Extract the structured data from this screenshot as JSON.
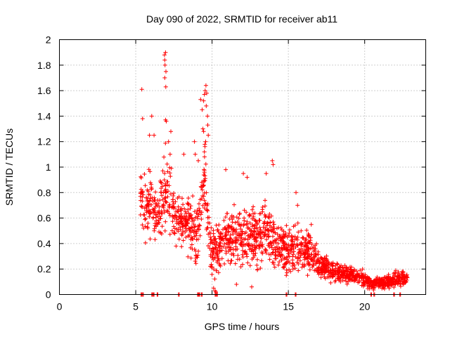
{
  "chart_data": {
    "type": "scatter",
    "title": "Day 090 of 2022, SRMTID for receiver ab11",
    "xlabel": "GPS time / hours",
    "ylabel": "SRMTID / TECUs",
    "xlim": [
      0,
      24
    ],
    "ylim": [
      0,
      2
    ],
    "xticks": [
      0,
      5,
      10,
      15,
      20
    ],
    "xtick_labels": [
      "0",
      "5",
      "10",
      "15",
      "20"
    ],
    "yticks": [
      0,
      0.2,
      0.4,
      0.6,
      0.8,
      1,
      1.2,
      1.4,
      1.6,
      1.8,
      2
    ],
    "ytick_labels": [
      "0",
      "0.2",
      "0.4",
      "0.6",
      "0.8",
      "1",
      "1.2",
      "1.4",
      "1.6",
      "1.8",
      "2"
    ],
    "grid": true,
    "marker": "+",
    "series": [
      {
        "name": "SRMTID",
        "color": "#ff0000",
        "profile": {
          "x": [
            5.3,
            5.5,
            6.0,
            6.5,
            6.9,
            7.0,
            7.5,
            8.0,
            8.5,
            9.0,
            9.3,
            9.5,
            9.8,
            10.0,
            10.3,
            11.0,
            12.0,
            13.0,
            13.5,
            14.0,
            15.0,
            15.5,
            16.0,
            16.5,
            17.0,
            17.5,
            18.0,
            18.5,
            19.0,
            19.5,
            20.0,
            20.5,
            21.0,
            21.5,
            22.0,
            22.5,
            22.8
          ],
          "y": [
            0.72,
            0.68,
            0.72,
            0.6,
            0.9,
            0.85,
            0.6,
            0.55,
            0.55,
            0.5,
            0.65,
            0.9,
            0.55,
            0.3,
            0.35,
            0.45,
            0.45,
            0.45,
            0.5,
            0.4,
            0.35,
            0.35,
            0.35,
            0.35,
            0.22,
            0.2,
            0.18,
            0.17,
            0.15,
            0.14,
            0.12,
            0.08,
            0.09,
            0.1,
            0.12,
            0.13,
            0.13
          ],
          "spread": [
            0.28,
            0.3,
            0.3,
            0.25,
            0.4,
            0.35,
            0.25,
            0.22,
            0.25,
            0.25,
            0.3,
            0.3,
            0.25,
            0.2,
            0.2,
            0.22,
            0.25,
            0.25,
            0.25,
            0.22,
            0.18,
            0.2,
            0.18,
            0.17,
            0.1,
            0.09,
            0.08,
            0.08,
            0.07,
            0.07,
            0.06,
            0.05,
            0.05,
            0.05,
            0.06,
            0.06,
            0.06
          ],
          "count": 1700
        },
        "peaks": [
          {
            "x": 5.4,
            "y": 1.61
          },
          {
            "x": 5.45,
            "y": 1.38
          },
          {
            "x": 6.05,
            "y": 1.4
          },
          {
            "x": 5.9,
            "y": 1.25
          },
          {
            "x": 6.2,
            "y": 1.25
          },
          {
            "x": 6.88,
            "y": 1.88
          },
          {
            "x": 6.9,
            "y": 1.84
          },
          {
            "x": 6.95,
            "y": 1.9
          },
          {
            "x": 6.92,
            "y": 1.8
          },
          {
            "x": 6.98,
            "y": 1.75
          },
          {
            "x": 6.9,
            "y": 1.7
          },
          {
            "x": 6.97,
            "y": 1.63
          },
          {
            "x": 6.95,
            "y": 1.37
          },
          {
            "x": 7.0,
            "y": 1.36
          },
          {
            "x": 7.3,
            "y": 1.28
          },
          {
            "x": 7.15,
            "y": 1.2
          },
          {
            "x": 7.25,
            "y": 1.1
          },
          {
            "x": 8.15,
            "y": 1.1
          },
          {
            "x": 8.85,
            "y": 1.2
          },
          {
            "x": 8.9,
            "y": 1.1
          },
          {
            "x": 9.1,
            "y": 1.05
          },
          {
            "x": 9.25,
            "y": 1.53
          },
          {
            "x": 9.35,
            "y": 1.45
          },
          {
            "x": 9.4,
            "y": 1.3
          },
          {
            "x": 9.45,
            "y": 1.52
          },
          {
            "x": 9.5,
            "y": 1.57
          },
          {
            "x": 9.55,
            "y": 1.6
          },
          {
            "x": 9.6,
            "y": 1.64
          },
          {
            "x": 9.65,
            "y": 1.58
          },
          {
            "x": 9.62,
            "y": 1.48
          },
          {
            "x": 9.7,
            "y": 1.4
          },
          {
            "x": 9.72,
            "y": 1.33
          },
          {
            "x": 9.75,
            "y": 1.25
          },
          {
            "x": 9.58,
            "y": 1.2
          },
          {
            "x": 9.5,
            "y": 1.12
          },
          {
            "x": 9.45,
            "y": 1.28
          },
          {
            "x": 10.9,
            "y": 0.98
          },
          {
            "x": 12.05,
            "y": 0.95
          },
          {
            "x": 12.3,
            "y": 0.92
          },
          {
            "x": 13.55,
            "y": 0.95
          },
          {
            "x": 13.95,
            "y": 1.05
          },
          {
            "x": 14.0,
            "y": 1.02
          },
          {
            "x": 15.5,
            "y": 0.8
          },
          {
            "x": 15.6,
            "y": 0.7
          },
          {
            "x": 16.5,
            "y": 0.55
          },
          {
            "x": 10.2,
            "y": 0.03
          },
          {
            "x": 10.25,
            "y": 0.02
          },
          {
            "x": 10.1,
            "y": 0.05
          },
          {
            "x": 11.6,
            "y": 0.08
          },
          {
            "x": 12.6,
            "y": 0.06
          }
        ],
        "baseline_x": [
          5.35,
          5.45,
          6.05,
          6.15,
          6.4,
          7.8,
          9.05,
          9.15,
          9.3,
          10.2,
          10.3,
          14.85,
          15.45,
          20.4,
          20.6,
          21.9,
          22.3
        ]
      }
    ]
  }
}
